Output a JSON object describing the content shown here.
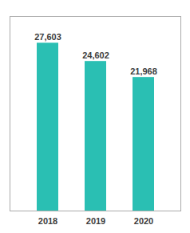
{
  "chart_data": {
    "type": "bar",
    "categories": [
      "2018",
      "2019",
      "2020"
    ],
    "values": [
      27603,
      24602,
      21968
    ],
    "value_labels": [
      "27,603",
      "24,602",
      "21,968"
    ],
    "color": "#2abfb3",
    "ylim": [
      0,
      32000
    ],
    "data_labels": true,
    "tick_labels": "x"
  }
}
